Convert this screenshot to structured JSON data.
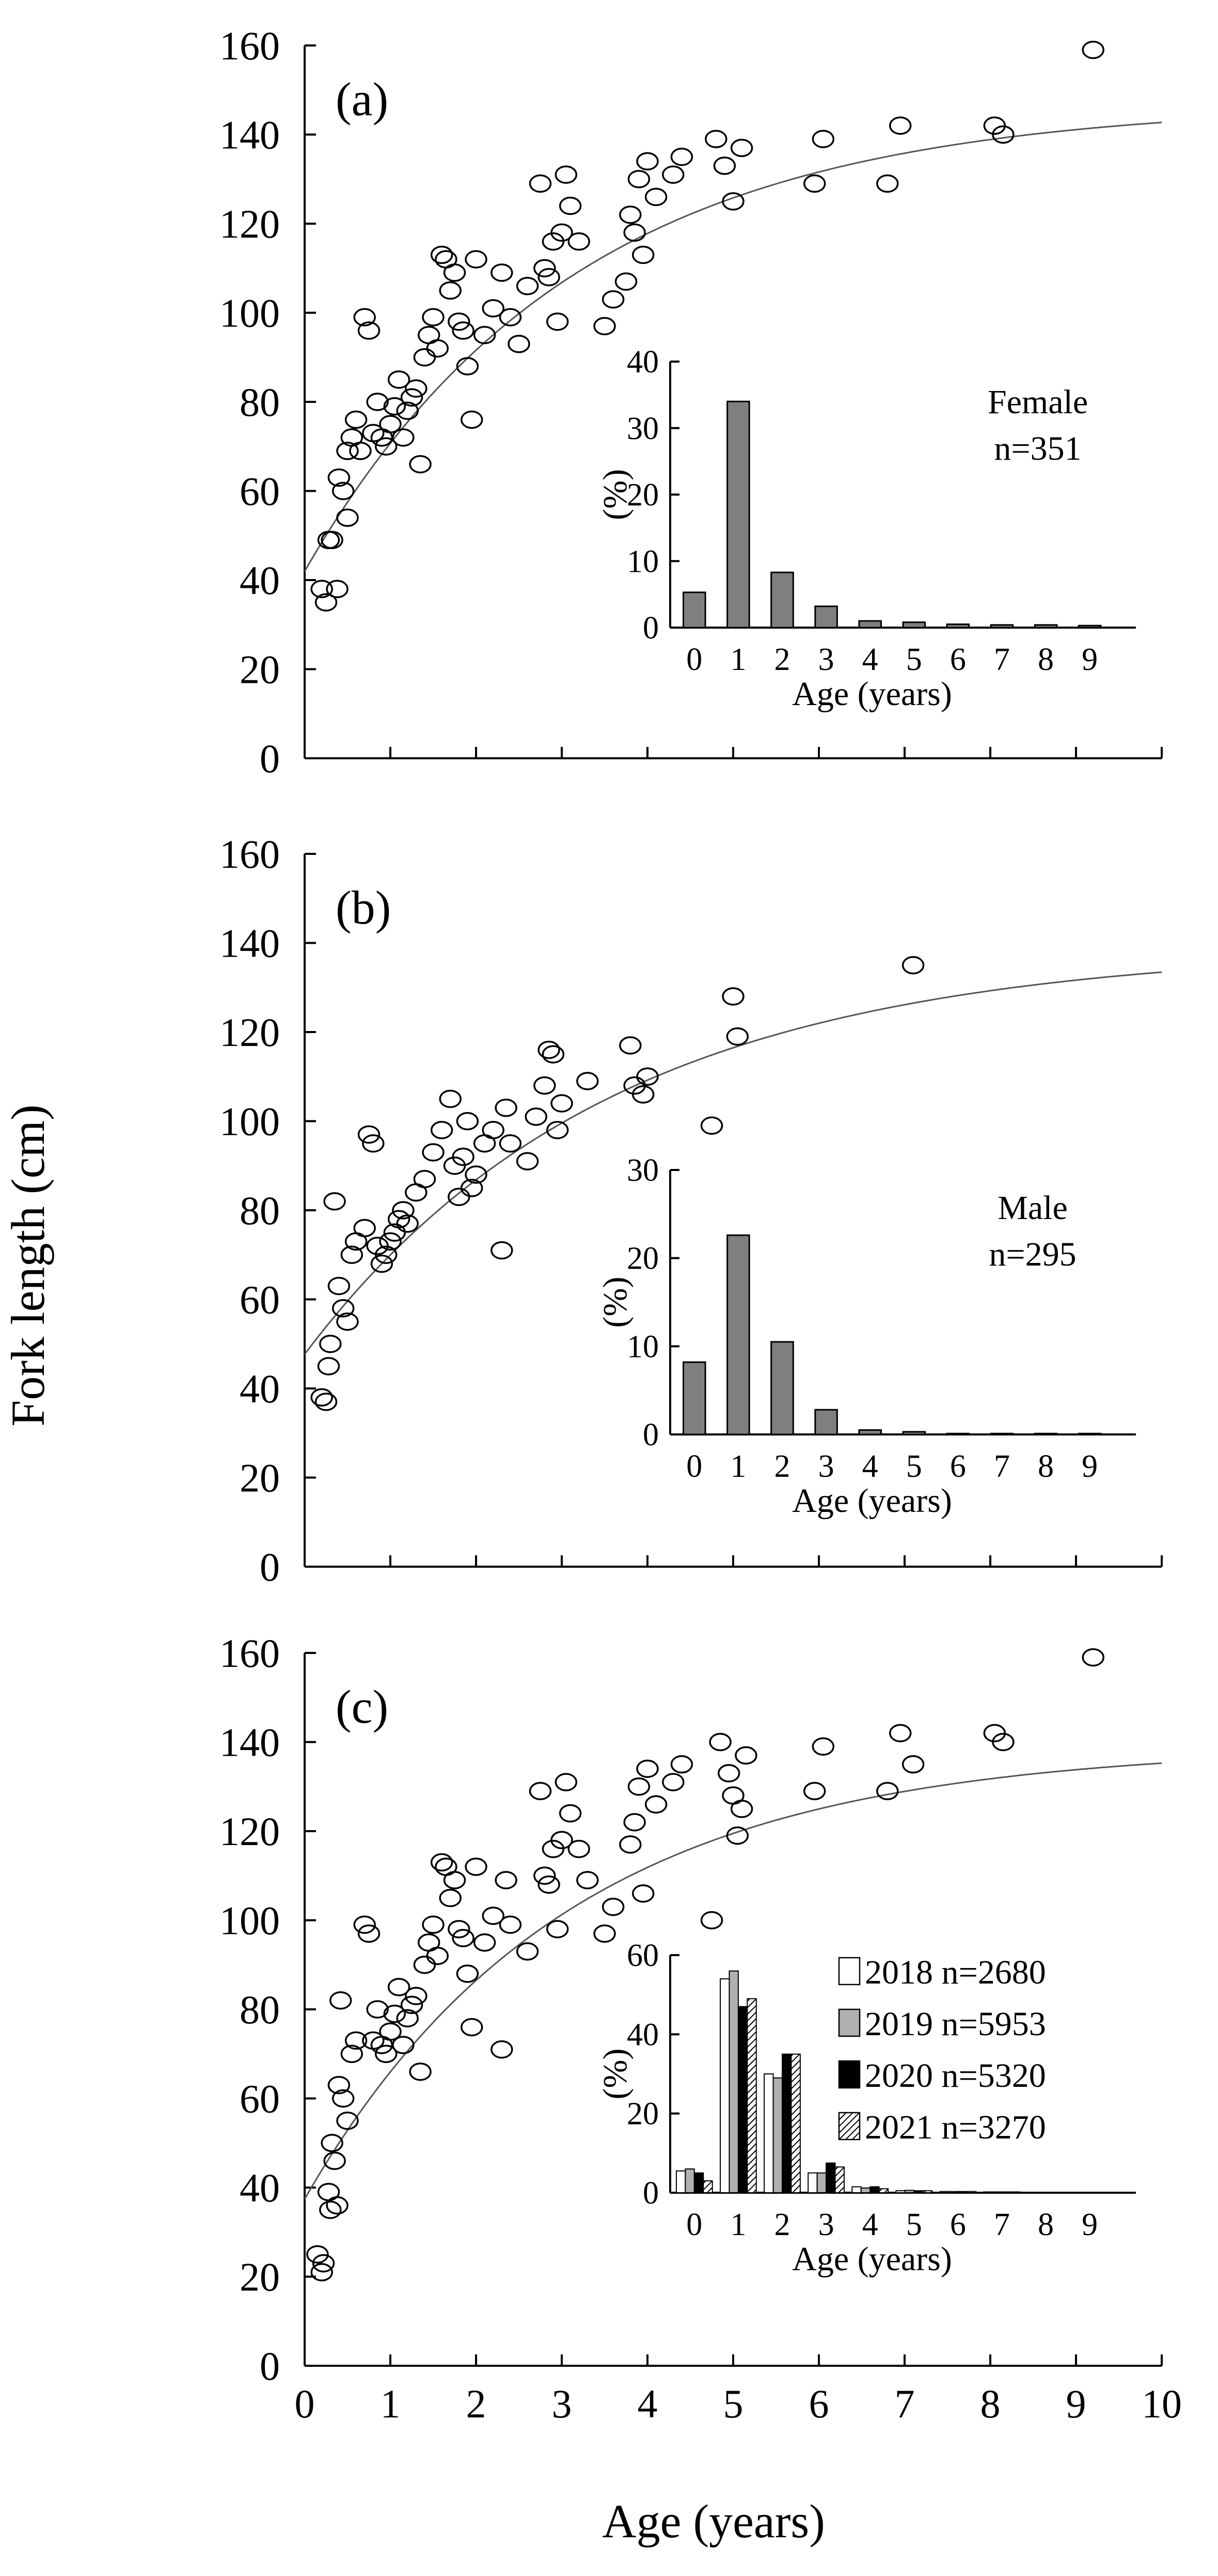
{
  "figure": {
    "ylabel": "Fork length (cm)",
    "xlabel": "Age (years)"
  },
  "chart_data": [
    {
      "type": "scatter",
      "panel_label": "(a)",
      "xlim": [
        0,
        10
      ],
      "ylim": [
        0,
        160
      ],
      "x_ticks": [
        0,
        1,
        2,
        3,
        4,
        5,
        6,
        7,
        8,
        9,
        10
      ],
      "y_ticks": [
        0,
        20,
        40,
        60,
        80,
        100,
        120,
        140,
        160
      ],
      "xlabel": "Age (years)",
      "ylabel": "Fork length (cm)",
      "curve": {
        "Linf": 147,
        "k": 0.32,
        "t0": -1.05
      },
      "points": [
        [
          0.2,
          38
        ],
        [
          0.25,
          35
        ],
        [
          0.28,
          49
        ],
        [
          0.32,
          49
        ],
        [
          0.38,
          38
        ],
        [
          0.4,
          63
        ],
        [
          0.45,
          60
        ],
        [
          0.5,
          69
        ],
        [
          0.5,
          54
        ],
        [
          0.55,
          72
        ],
        [
          0.6,
          76
        ],
        [
          0.65,
          69
        ],
        [
          0.7,
          99
        ],
        [
          0.75,
          96
        ],
        [
          0.8,
          73
        ],
        [
          0.85,
          80
        ],
        [
          0.9,
          72
        ],
        [
          0.95,
          70
        ],
        [
          1.0,
          75
        ],
        [
          1.05,
          79
        ],
        [
          1.1,
          85
        ],
        [
          1.15,
          72
        ],
        [
          1.2,
          78
        ],
        [
          1.25,
          81
        ],
        [
          1.3,
          83
        ],
        [
          1.35,
          66
        ],
        [
          1.4,
          90
        ],
        [
          1.45,
          95
        ],
        [
          1.5,
          99
        ],
        [
          1.55,
          92
        ],
        [
          1.6,
          113
        ],
        [
          1.65,
          112
        ],
        [
          1.7,
          105
        ],
        [
          1.75,
          109
        ],
        [
          1.8,
          98
        ],
        [
          1.85,
          96
        ],
        [
          1.9,
          88
        ],
        [
          1.95,
          76
        ],
        [
          2.0,
          112
        ],
        [
          2.1,
          95
        ],
        [
          2.2,
          101
        ],
        [
          2.3,
          109
        ],
        [
          2.4,
          99
        ],
        [
          2.5,
          93
        ],
        [
          2.6,
          106
        ],
        [
          2.75,
          129
        ],
        [
          2.8,
          110
        ],
        [
          2.85,
          108
        ],
        [
          2.9,
          116
        ],
        [
          2.95,
          98
        ],
        [
          3.0,
          118
        ],
        [
          3.05,
          131
        ],
        [
          3.1,
          124
        ],
        [
          3.2,
          116
        ],
        [
          3.5,
          97
        ],
        [
          3.6,
          103
        ],
        [
          3.75,
          107
        ],
        [
          3.8,
          122
        ],
        [
          3.85,
          118
        ],
        [
          3.9,
          130
        ],
        [
          3.95,
          113
        ],
        [
          4.0,
          134
        ],
        [
          4.1,
          126
        ],
        [
          4.3,
          131
        ],
        [
          4.4,
          135
        ],
        [
          4.8,
          139
        ],
        [
          4.9,
          133
        ],
        [
          5.0,
          125
        ],
        [
          5.1,
          137
        ],
        [
          5.95,
          129
        ],
        [
          6.05,
          139
        ],
        [
          6.8,
          129
        ],
        [
          6.95,
          142
        ],
        [
          8.05,
          142
        ],
        [
          8.15,
          140
        ],
        [
          9.2,
          159
        ]
      ]
    },
    {
      "type": "bar",
      "categories": [
        "0",
        "1",
        "2",
        "3",
        "4",
        "5",
        "6",
        "7",
        "8",
        "9"
      ],
      "values": [
        5.3,
        34.0,
        8.3,
        3.2,
        1.0,
        0.8,
        0.5,
        0.4,
        0.4,
        0.3
      ],
      "xlabel": "Age (years)",
      "ylabel": "(%)",
      "ylim": [
        0,
        40
      ],
      "y_ticks": [
        0,
        10,
        20,
        30,
        40
      ],
      "legend_lines": [
        "Female",
        "n=351"
      ]
    },
    {
      "type": "scatter",
      "panel_label": "(b)",
      "xlim": [
        0,
        10
      ],
      "ylim": [
        0,
        160
      ],
      "x_ticks": [
        0,
        1,
        2,
        3,
        4,
        5,
        6,
        7,
        8,
        9,
        10
      ],
      "y_ticks": [
        0,
        20,
        40,
        60,
        80,
        100,
        120,
        140,
        160
      ],
      "xlabel": "Age (years)",
      "ylabel": "Fork length (cm)",
      "curve": {
        "Linf": 139,
        "k": 0.28,
        "t0": -1.5
      },
      "points": [
        [
          0.2,
          38
        ],
        [
          0.25,
          37
        ],
        [
          0.28,
          45
        ],
        [
          0.3,
          50
        ],
        [
          0.35,
          82
        ],
        [
          0.4,
          63
        ],
        [
          0.45,
          58
        ],
        [
          0.5,
          55
        ],
        [
          0.55,
          70
        ],
        [
          0.6,
          73
        ],
        [
          0.7,
          76
        ],
        [
          0.75,
          97
        ],
        [
          0.8,
          95
        ],
        [
          0.85,
          72
        ],
        [
          0.9,
          68
        ],
        [
          0.95,
          70
        ],
        [
          1.0,
          73
        ],
        [
          1.05,
          75
        ],
        [
          1.1,
          78
        ],
        [
          1.15,
          80
        ],
        [
          1.2,
          77
        ],
        [
          1.3,
          84
        ],
        [
          1.4,
          87
        ],
        [
          1.5,
          93
        ],
        [
          1.6,
          98
        ],
        [
          1.7,
          105
        ],
        [
          1.75,
          90
        ],
        [
          1.8,
          83
        ],
        [
          1.85,
          92
        ],
        [
          1.9,
          100
        ],
        [
          1.95,
          85
        ],
        [
          2.0,
          88
        ],
        [
          2.1,
          95
        ],
        [
          2.2,
          98
        ],
        [
          2.3,
          71
        ],
        [
          2.35,
          103
        ],
        [
          2.4,
          95
        ],
        [
          2.6,
          91
        ],
        [
          2.7,
          101
        ],
        [
          2.8,
          108
        ],
        [
          2.85,
          116
        ],
        [
          2.9,
          115
        ],
        [
          2.95,
          98
        ],
        [
          3.0,
          104
        ],
        [
          3.3,
          109
        ],
        [
          3.8,
          117
        ],
        [
          3.85,
          108
        ],
        [
          3.95,
          106
        ],
        [
          4.0,
          110
        ],
        [
          4.75,
          99
        ],
        [
          5.0,
          128
        ],
        [
          5.05,
          119
        ],
        [
          7.1,
          135
        ]
      ]
    },
    {
      "type": "bar",
      "categories": [
        "0",
        "1",
        "2",
        "3",
        "4",
        "5",
        "6",
        "7",
        "8",
        "9"
      ],
      "values": [
        8.2,
        22.6,
        10.5,
        2.8,
        0.5,
        0.3,
        0.1,
        0.1,
        0.1,
        0.1
      ],
      "xlabel": "Age (years)",
      "ylabel": "(%)",
      "ylim": [
        0,
        30
      ],
      "y_ticks": [
        0,
        10,
        20,
        30
      ],
      "legend_lines": [
        "Male",
        "n=295"
      ]
    },
    {
      "type": "scatter",
      "panel_label": "(c)",
      "xlim": [
        0,
        10
      ],
      "ylim": [
        0,
        160
      ],
      "x_ticks": [
        0,
        1,
        2,
        3,
        4,
        5,
        6,
        7,
        8,
        9,
        10
      ],
      "y_ticks": [
        0,
        20,
        40,
        60,
        80,
        100,
        120,
        140,
        160
      ],
      "xlabel": "Age (years)",
      "ylabel": "Fork length (cm)",
      "curve": {
        "Linf": 139,
        "k": 0.33,
        "t0": -0.95
      },
      "points": [
        [
          0.15,
          25
        ],
        [
          0.2,
          21
        ],
        [
          0.22,
          23
        ],
        [
          0.28,
          39
        ],
        [
          0.3,
          35
        ],
        [
          0.32,
          50
        ],
        [
          0.35,
          46
        ],
        [
          0.38,
          36
        ],
        [
          0.4,
          63
        ],
        [
          0.42,
          82
        ],
        [
          0.45,
          60
        ],
        [
          0.5,
          55
        ],
        [
          0.55,
          70
        ],
        [
          0.6,
          73
        ],
        [
          0.7,
          99
        ],
        [
          0.75,
          97
        ],
        [
          0.8,
          73
        ],
        [
          0.85,
          80
        ],
        [
          0.9,
          72
        ],
        [
          0.95,
          70
        ],
        [
          1.0,
          75
        ],
        [
          1.05,
          79
        ],
        [
          1.1,
          85
        ],
        [
          1.15,
          72
        ],
        [
          1.2,
          78
        ],
        [
          1.25,
          81
        ],
        [
          1.3,
          83
        ],
        [
          1.35,
          66
        ],
        [
          1.4,
          90
        ],
        [
          1.45,
          95
        ],
        [
          1.5,
          99
        ],
        [
          1.55,
          92
        ],
        [
          1.6,
          113
        ],
        [
          1.65,
          112
        ],
        [
          1.7,
          105
        ],
        [
          1.75,
          109
        ],
        [
          1.8,
          98
        ],
        [
          1.85,
          96
        ],
        [
          1.9,
          88
        ],
        [
          1.95,
          76
        ],
        [
          2.0,
          112
        ],
        [
          2.1,
          95
        ],
        [
          2.2,
          101
        ],
        [
          2.3,
          71
        ],
        [
          2.35,
          109
        ],
        [
          2.4,
          99
        ],
        [
          2.6,
          93
        ],
        [
          2.75,
          129
        ],
        [
          2.8,
          110
        ],
        [
          2.85,
          108
        ],
        [
          2.9,
          116
        ],
        [
          2.95,
          98
        ],
        [
          3.0,
          118
        ],
        [
          3.05,
          131
        ],
        [
          3.1,
          124
        ],
        [
          3.2,
          116
        ],
        [
          3.3,
          109
        ],
        [
          3.5,
          97
        ],
        [
          3.6,
          103
        ],
        [
          3.8,
          117
        ],
        [
          3.85,
          122
        ],
        [
          3.9,
          130
        ],
        [
          3.95,
          106
        ],
        [
          4.0,
          134
        ],
        [
          4.1,
          126
        ],
        [
          4.3,
          131
        ],
        [
          4.4,
          135
        ],
        [
          4.75,
          100
        ],
        [
          4.85,
          140
        ],
        [
          4.95,
          133
        ],
        [
          5.0,
          128
        ],
        [
          5.05,
          119
        ],
        [
          5.1,
          125
        ],
        [
          5.15,
          137
        ],
        [
          5.95,
          129
        ],
        [
          6.05,
          139
        ],
        [
          6.8,
          129
        ],
        [
          6.95,
          142
        ],
        [
          7.1,
          135
        ],
        [
          8.05,
          142
        ],
        [
          8.15,
          140
        ],
        [
          9.2,
          159
        ]
      ]
    },
    {
      "type": "bar",
      "categories": [
        "0",
        "1",
        "2",
        "3",
        "4",
        "5",
        "6",
        "7",
        "8",
        "9"
      ],
      "ylim": [
        0,
        60
      ],
      "y_ticks": [
        0,
        20,
        40,
        60
      ],
      "xlabel": "Age (years)",
      "ylabel": "(%)",
      "series": [
        {
          "name": "2018 n=2680",
          "fill": "#ffffff",
          "pattern": "none",
          "values": [
            5.5,
            54.0,
            30.0,
            5.0,
            1.5,
            0.5,
            0.3,
            0.2,
            0.1,
            0.1
          ]
        },
        {
          "name": "2019 n=5953",
          "fill": "#b0b0b0",
          "pattern": "none",
          "values": [
            6.0,
            56.0,
            29.0,
            5.0,
            1.2,
            0.6,
            0.3,
            0.2,
            0.1,
            0.1
          ]
        },
        {
          "name": "2020 n=5320",
          "fill": "#000000",
          "pattern": "none",
          "values": [
            5.0,
            47.0,
            35.0,
            7.5,
            1.5,
            0.5,
            0.3,
            0.2,
            0.1,
            0.1
          ]
        },
        {
          "name": "2021 n=3270",
          "fill": "#ffffff",
          "pattern": "hatch",
          "values": [
            3.0,
            49.0,
            35.0,
            6.5,
            1.0,
            0.5,
            0.3,
            0.2,
            0.1,
            0.1
          ]
        }
      ]
    }
  ]
}
